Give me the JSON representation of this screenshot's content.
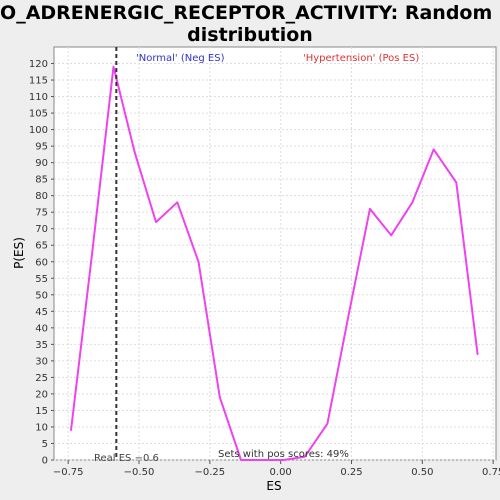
{
  "chart_data": {
    "type": "line",
    "title_line1": "GO_ADRENERGIC_RECEPTOR_ACTIVITY: Random ES",
    "title_line2": "distribution",
    "xlabel": "ES",
    "ylabel": "P(ES)",
    "xlim": [
      -0.8,
      0.76
    ],
    "ylim": [
      0,
      125
    ],
    "x_ticks": [
      -0.75,
      -0.5,
      -0.25,
      0.0,
      0.25,
      0.5,
      0.75
    ],
    "x_tick_labels": [
      "−0.75",
      "−0.50",
      "−0.25",
      "0.00",
      "0.25",
      "0.50",
      "0.75"
    ],
    "y_ticks": [
      0,
      5,
      10,
      15,
      20,
      25,
      30,
      35,
      40,
      45,
      50,
      55,
      60,
      65,
      70,
      75,
      80,
      85,
      90,
      95,
      100,
      105,
      110,
      115,
      120
    ],
    "grid": true,
    "series": [
      {
        "color": "#ee44ee",
        "x": [
          -0.74,
          -0.665,
          -0.59,
          -0.515,
          -0.44,
          -0.365,
          -0.29,
          -0.215,
          -0.14,
          -0.065,
          0.01,
          0.085,
          0.165,
          0.24,
          0.315,
          0.39,
          0.465,
          0.54,
          0.62,
          0.695
        ],
        "y": [
          9,
          63,
          119,
          93,
          72,
          78,
          60,
          19,
          0,
          0,
          0,
          1,
          11,
          44,
          76,
          68,
          78,
          94,
          84,
          32
        ]
      }
    ],
    "real_es": -0.58,
    "annotations": {
      "neg_label": "'Normal' (Neg ES)",
      "pos_label": "'Hypertension' (Pos ES)",
      "real_es_label": "Real ES −0.6",
      "pos_scores_label": "Sets with pos scores: 49%"
    },
    "colors": {
      "neg": "#3333cc",
      "pos": "#dd3333",
      "line": "#ee44ee",
      "real_es_line": "#333333"
    }
  }
}
